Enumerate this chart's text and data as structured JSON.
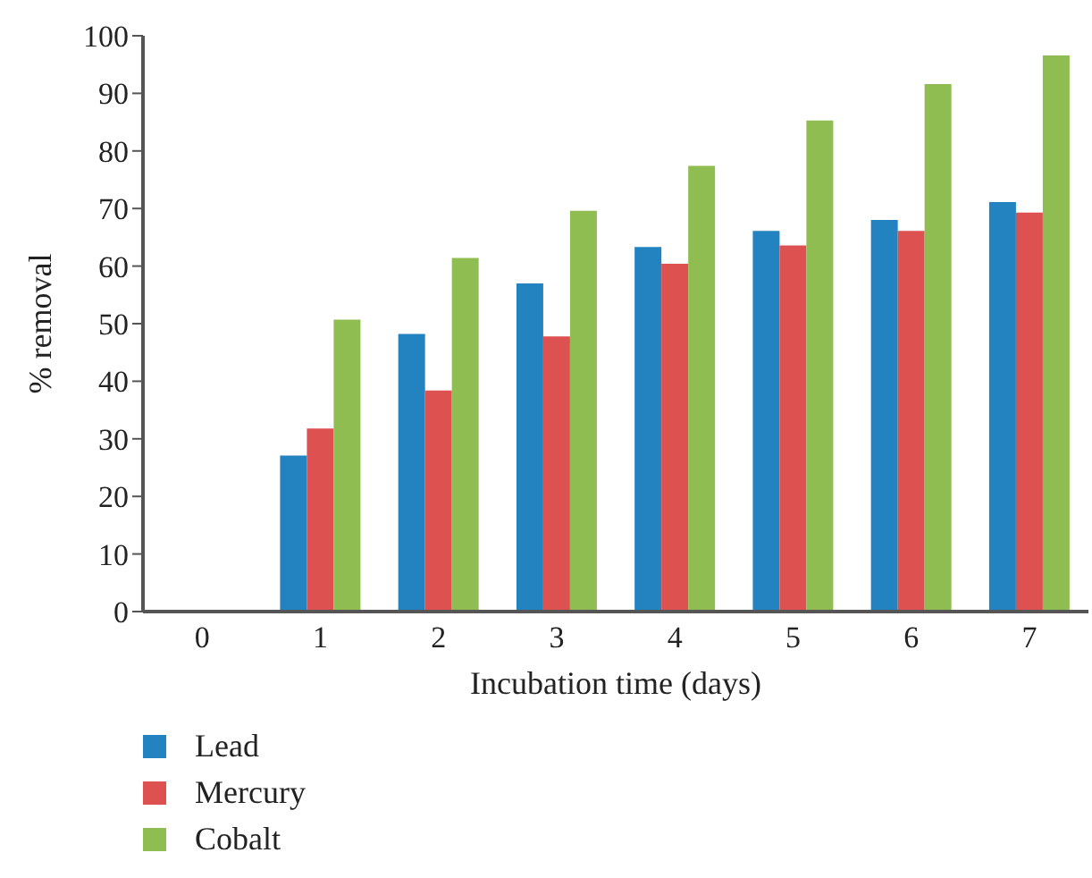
{
  "chart_data": {
    "type": "bar",
    "xlabel": "Incubation time (days)",
    "ylabel": "% removal",
    "categories": [
      "0",
      "1",
      "2",
      "3",
      "4",
      "5",
      "6",
      "7"
    ],
    "series": [
      {
        "name": "Lead",
        "color": "#2383c1",
        "values": [
          0,
          27.1,
          48.2,
          57.0,
          63.3,
          66.1,
          68.0,
          71.1
        ]
      },
      {
        "name": "Mercury",
        "color": "#dd5250",
        "values": [
          0,
          31.8,
          38.4,
          47.8,
          60.4,
          63.6,
          66.1,
          69.3
        ]
      },
      {
        "name": "Cobalt",
        "color": "#8fbd51",
        "values": [
          0,
          50.7,
          61.4,
          69.6,
          77.4,
          85.3,
          91.6,
          96.6
        ]
      }
    ],
    "ylim": [
      0,
      100
    ],
    "yticks": [
      0,
      10,
      20,
      30,
      40,
      50,
      60,
      70,
      80,
      90,
      100
    ],
    "grid": false,
    "legend": "bottom left"
  }
}
